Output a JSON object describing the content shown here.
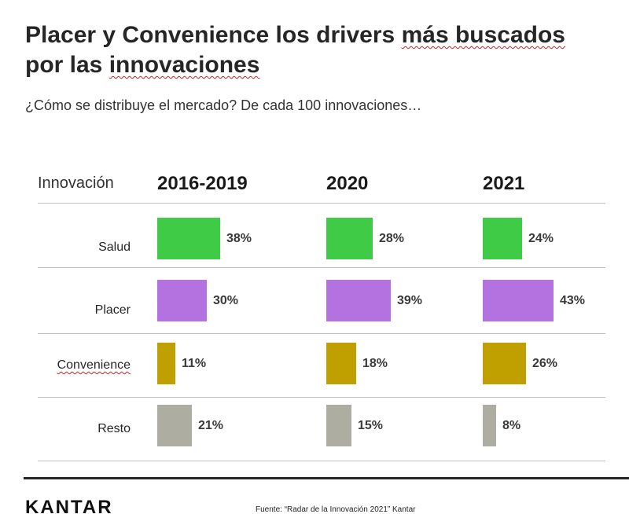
{
  "title": {
    "line1_a": "Placer y Convenience los drivers ",
    "line1_b": "más buscados",
    "line2_a": "por las ",
    "line2_b": "innovaciones"
  },
  "subtitle": "¿Cómo se distribuye el mercado? De cada 100 innovaciones…",
  "footer": {
    "logo": "KANTAR",
    "source": "Fuente: “Radar de la Innovación 2021” Kantar"
  },
  "chart_data": {
    "type": "bar",
    "row_header": "Innovación",
    "periods": [
      "2016-2019",
      "2020",
      "2021"
    ],
    "categories": [
      "Salud",
      "Placer",
      "Convenience",
      "Resto"
    ],
    "colors": {
      "Salud": "#3fcb46",
      "Placer": "#b472e0",
      "Convenience": "#c0a000",
      "Resto": "#adada1"
    },
    "values": {
      "2016-2019": [
        38,
        30,
        11,
        21
      ],
      "2020": [
        28,
        39,
        18,
        15
      ],
      "2021": [
        24,
        43,
        26,
        8
      ]
    },
    "labels": {
      "2016-2019": [
        "38%",
        "30%",
        "11%",
        "21%"
      ],
      "2020": [
        "28%",
        "39%",
        "18%",
        "15%"
      ],
      "2021": [
        "24%",
        "43%",
        "26%",
        "8%"
      ]
    },
    "unit": "%"
  }
}
